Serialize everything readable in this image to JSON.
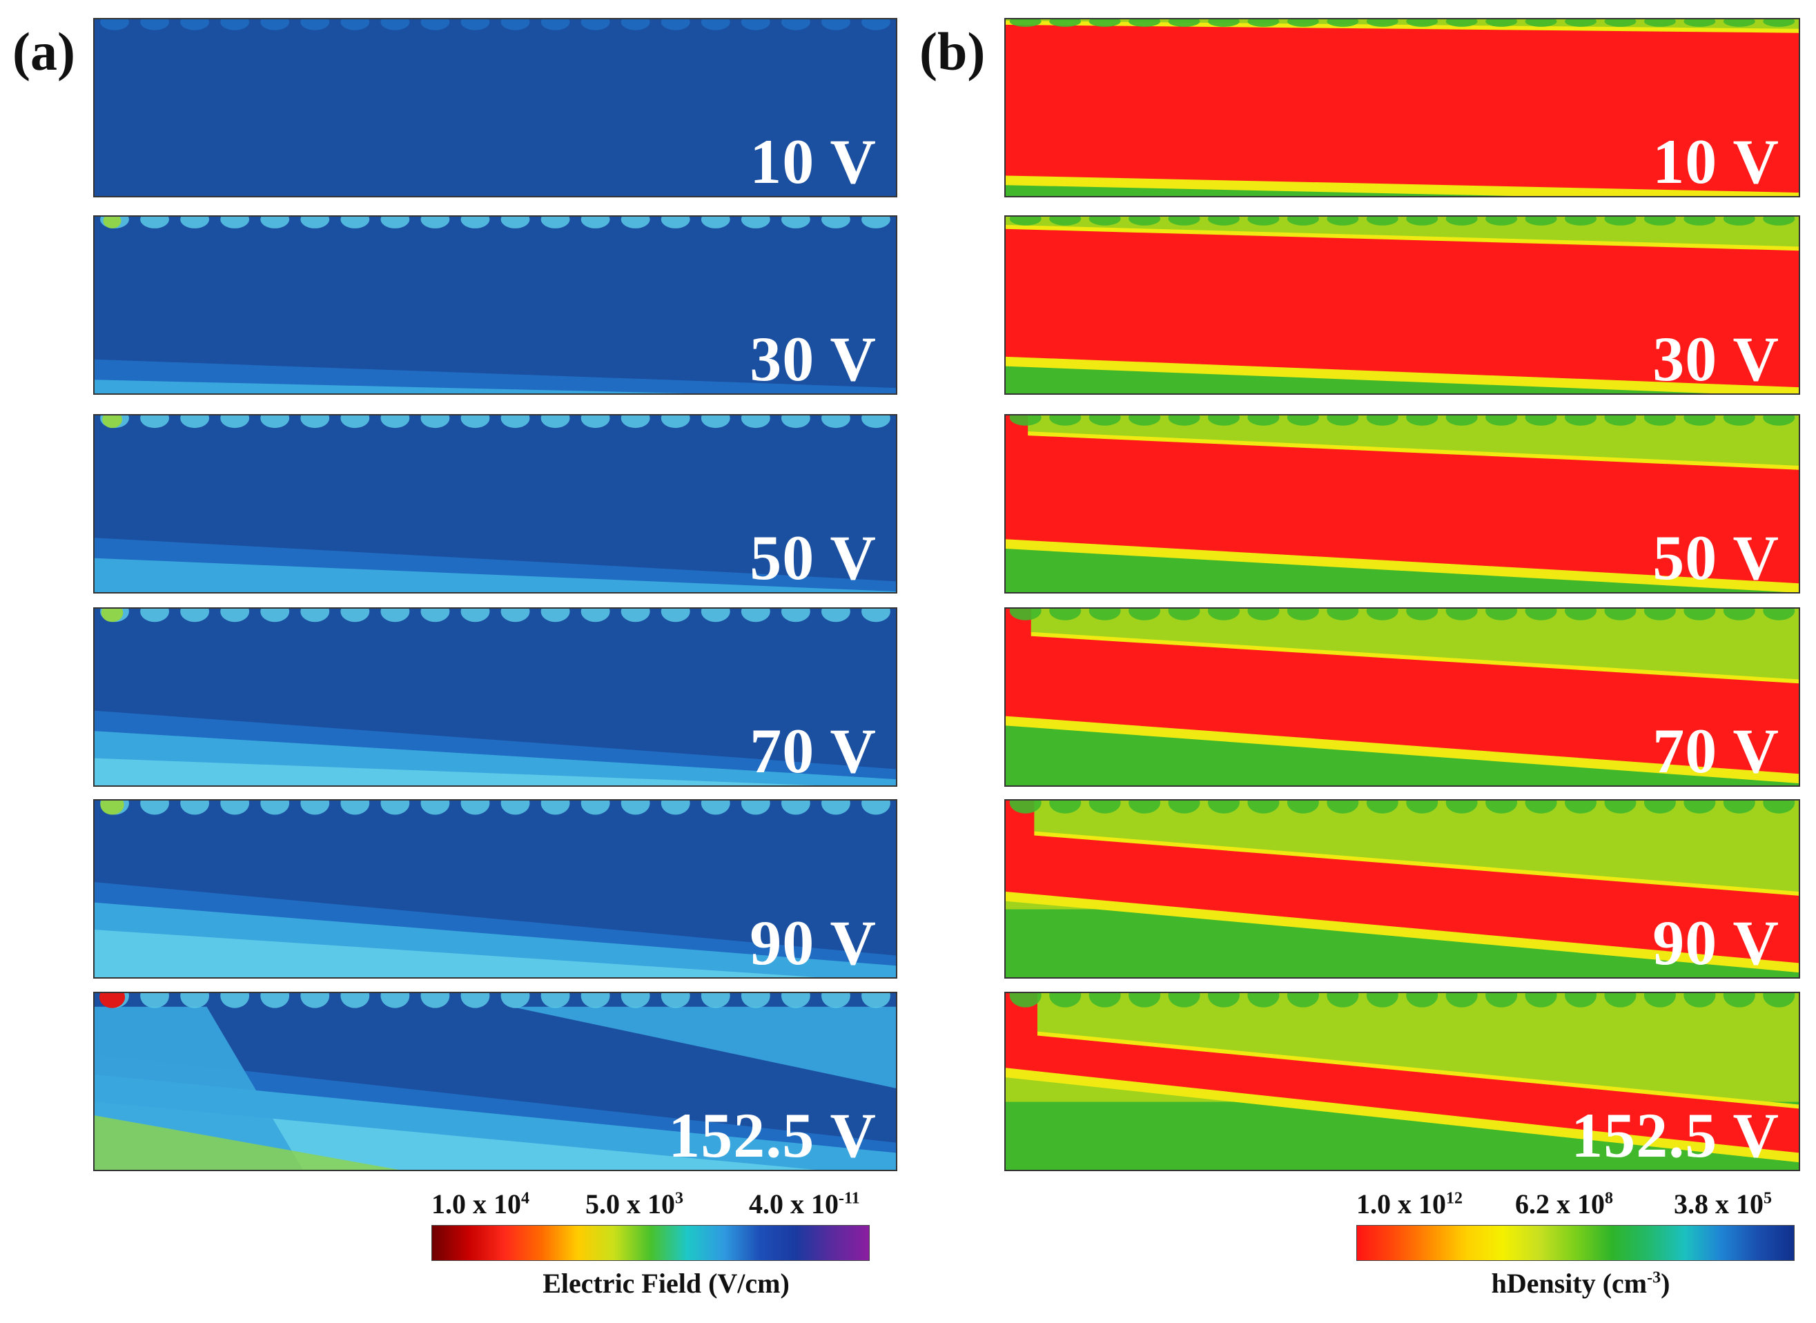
{
  "panels": [
    {
      "letter": "(a)",
      "quantity": "electric-field",
      "voltages": [
        "10 V",
        "30 V",
        "50 V",
        "70 V",
        "90 V",
        "152.5 V"
      ],
      "colorbar": {
        "tick_left_mant": "1.0 x 10",
        "tick_left_exp": "4",
        "tick_mid_mant": "5.0 x 10",
        "tick_mid_exp": "3",
        "tick_right_mant": "4.0 x 10",
        "tick_right_exp": "-11",
        "title": "Electric Field (V/cm)",
        "title_unit_exp": "",
        "colors": [
          "#6e0000",
          "#c80000",
          "#ff2a1a",
          "#ff6a00",
          "#ffcc00",
          "#c9e01a",
          "#49c12b",
          "#1ec7c7",
          "#2f9be0",
          "#1d4fb8",
          "#1a3aa0",
          "#5b2a9e",
          "#8a1ea0"
        ]
      }
    },
    {
      "letter": "(b)",
      "quantity": "hole-density",
      "voltages": [
        "10 V",
        "30 V",
        "50 V",
        "70 V",
        "90 V",
        "152.5 V"
      ],
      "colorbar": {
        "tick_left_mant": "1.0 x 10",
        "tick_left_exp": "12",
        "tick_mid_mant": "6.2 x 10",
        "tick_mid_exp": "8",
        "tick_right_mant": "3.8 x 10",
        "tick_right_exp": "5",
        "title": "hDensity (cm",
        "title_unit_exp": "-3",
        "title_close": ")",
        "colors": [
          "#ff1414",
          "#ff4a0a",
          "#ff8c00",
          "#ffd000",
          "#f4f000",
          "#c8e020",
          "#7bcf1a",
          "#2fb42a",
          "#22b96a",
          "#1cc0c0",
          "#1f84d4",
          "#1a4fb0",
          "#10308c"
        ]
      }
    }
  ],
  "colors": {
    "field_base": "#1b4fa0",
    "field_mid": "#1f6cc2",
    "field_light": "#3aa6de",
    "field_cyan": "#5cc9e8",
    "field_green": "#8fd44a",
    "field_red": "#e01818",
    "density_red": "#ff1a1a",
    "density_yellow": "#f0ea12",
    "density_green": "#41b82c",
    "voltage_text": "#ffffff"
  }
}
